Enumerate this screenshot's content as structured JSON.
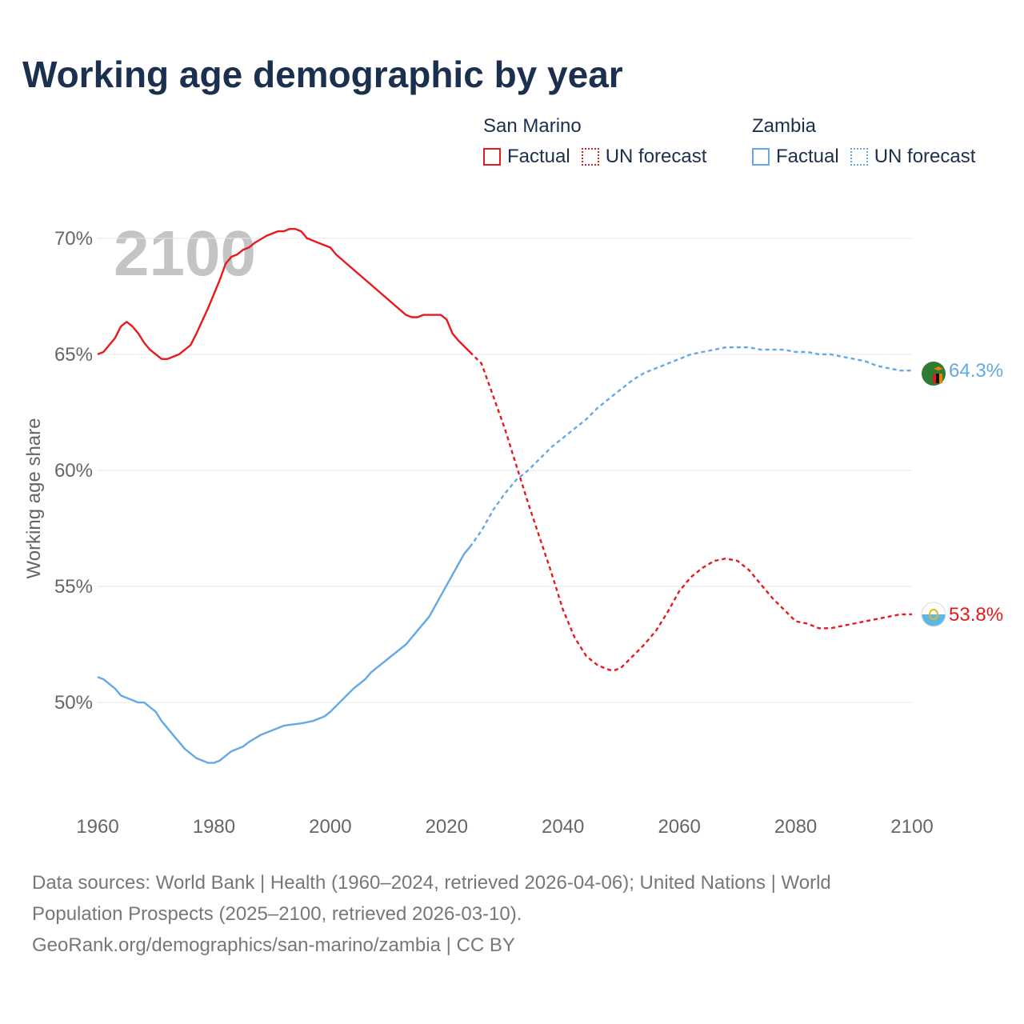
{
  "title": "Working age demographic by year",
  "legend": {
    "groups": [
      {
        "name": "San Marino",
        "factual_label": "Factual",
        "forecast_label": "UN forecast",
        "color": "#e8191c"
      },
      {
        "name": "Zambia",
        "factual_label": "Factual",
        "forecast_label": "UN forecast",
        "color": "#64a8e6"
      }
    ]
  },
  "chart_data": {
    "type": "line",
    "title": "Working age demographic by year",
    "year_overlay": "2100",
    "xlabel": "",
    "ylabel": "Working age share",
    "xlim": [
      1960,
      2100
    ],
    "ylim": [
      45.8,
      71.2
    ],
    "x_ticks": [
      1960,
      1980,
      2000,
      2020,
      2040,
      2060,
      2080,
      2100
    ],
    "y_ticks": [
      50,
      55,
      60,
      65,
      70
    ],
    "y_tick_labels": [
      "50%",
      "55%",
      "60%",
      "65%",
      "70%"
    ],
    "forecast_start": 2024,
    "series": [
      {
        "name": "San Marino",
        "color": "#e8191c",
        "end_label": "53.8%",
        "x": [
          1960,
          1961,
          1963,
          1964,
          1965,
          1966,
          1967,
          1968,
          1969,
          1971,
          1972,
          1974,
          1976,
          1977,
          1979,
          1981,
          1982,
          1983,
          1984,
          1985,
          1986,
          1987,
          1989,
          1991,
          1992,
          1993,
          1994,
          1995,
          1996,
          1998,
          2000,
          2001,
          2013,
          2014,
          2015,
          2016,
          2018,
          2019,
          2020,
          2021,
          2022,
          2024,
          2026,
          2028,
          2030,
          2032,
          2034,
          2036,
          2038,
          2040,
          2042,
          2044,
          2046,
          2048,
          2049,
          2050,
          2052,
          2054,
          2056,
          2058,
          2060,
          2062,
          2064,
          2066,
          2068,
          2070,
          2072,
          2074,
          2076,
          2078,
          2080,
          2082,
          2084,
          2086,
          2088,
          2090,
          2092,
          2094,
          2096,
          2098,
          2100
        ],
        "values": [
          65.0,
          65.1,
          65.7,
          66.2,
          66.4,
          66.2,
          65.9,
          65.5,
          65.2,
          64.8,
          64.8,
          65.0,
          65.4,
          65.9,
          67.0,
          68.2,
          68.9,
          69.2,
          69.3,
          69.5,
          69.6,
          69.8,
          70.1,
          70.3,
          70.3,
          70.4,
          70.4,
          70.3,
          70.0,
          69.8,
          69.6,
          69.3,
          66.7,
          66.6,
          66.6,
          66.7,
          66.7,
          66.7,
          66.5,
          65.9,
          65.6,
          65.1,
          64.6,
          63.2,
          61.8,
          60.2,
          58.6,
          57.1,
          55.6,
          54.0,
          52.8,
          52.0,
          51.6,
          51.4,
          51.4,
          51.5,
          52.0,
          52.5,
          53.1,
          53.9,
          54.8,
          55.4,
          55.8,
          56.1,
          56.2,
          56.1,
          55.7,
          55.1,
          54.5,
          54.0,
          53.5,
          53.4,
          53.2,
          53.2,
          53.3,
          53.4,
          53.5,
          53.6,
          53.7,
          53.8,
          53.8
        ]
      },
      {
        "name": "Zambia",
        "color": "#64a8e6",
        "end_label": "64.3%",
        "x": [
          1960,
          1961,
          1963,
          1964,
          1966,
          1967,
          1968,
          1970,
          1971,
          1973,
          1975,
          1977,
          1979,
          1980,
          1981,
          1983,
          1985,
          1986,
          1988,
          1990,
          1991,
          1992,
          1995,
          1997,
          1998,
          1999,
          2000,
          2002,
          2004,
          2006,
          2007,
          2010,
          2013,
          2015,
          2017,
          2019,
          2021,
          2023,
          2024,
          2026,
          2028,
          2030,
          2032,
          2034,
          2036,
          2038,
          2040,
          2042,
          2044,
          2046,
          2048,
          2050,
          2052,
          2054,
          2056,
          2058,
          2060,
          2062,
          2064,
          2066,
          2068,
          2070,
          2072,
          2074,
          2076,
          2078,
          2080,
          2082,
          2084,
          2086,
          2088,
          2090,
          2092,
          2094,
          2096,
          2098,
          2100
        ],
        "values": [
          51.1,
          51.0,
          50.6,
          50.3,
          50.1,
          50.0,
          50.0,
          49.6,
          49.2,
          48.6,
          48.0,
          47.6,
          47.4,
          47.4,
          47.5,
          47.9,
          48.1,
          48.3,
          48.6,
          48.8,
          48.9,
          49.0,
          49.1,
          49.2,
          49.3,
          49.4,
          49.6,
          50.1,
          50.6,
          51.0,
          51.3,
          51.9,
          52.5,
          53.1,
          53.7,
          54.6,
          55.5,
          56.4,
          56.7,
          57.4,
          58.3,
          59.0,
          59.6,
          60.0,
          60.5,
          61.0,
          61.4,
          61.8,
          62.2,
          62.7,
          63.1,
          63.5,
          63.9,
          64.2,
          64.4,
          64.6,
          64.8,
          65.0,
          65.1,
          65.2,
          65.3,
          65.3,
          65.3,
          65.2,
          65.2,
          65.2,
          65.1,
          65.1,
          65.0,
          65.0,
          64.9,
          64.8,
          64.7,
          64.5,
          64.4,
          64.3,
          64.3
        ]
      }
    ]
  },
  "footer": {
    "line1": "Data sources: World Bank | Health (1960–2024, retrieved 2026-04-06); United Nations | World",
    "line2": "Population Prospects (2025–2100, retrieved 2026-03-10).",
    "line3": "GeoRank.org/demographics/san-marino/zambia | CC BY"
  }
}
